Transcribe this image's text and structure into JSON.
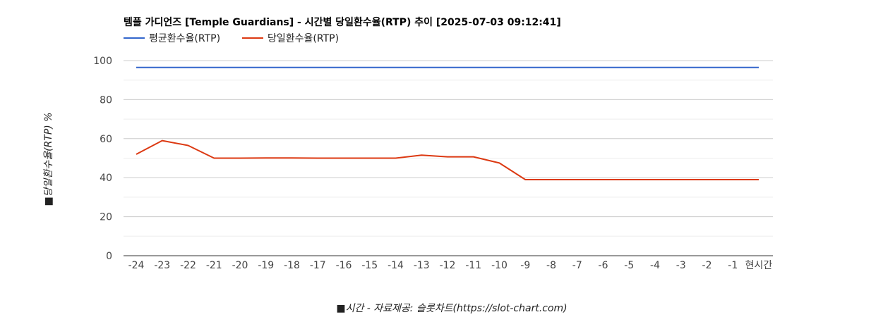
{
  "chart_data": {
    "type": "line",
    "title": "템플 가디언즈 [Temple Guardians] - 시간별 당일환수율(RTP) 추이 [2025-07-03 09:12:41]",
    "xlabel": "■시간 - 자료제공: 슬롯차트(https://slot-chart.com)",
    "ylabel": "■당일환수율(RTP) %",
    "ylim": [
      0,
      100
    ],
    "yticks": [
      0,
      20,
      40,
      60,
      80,
      100
    ],
    "grid": true,
    "legend_position": "top-left",
    "categories": [
      "-24",
      "-23",
      "-22",
      "-21",
      "-20",
      "-19",
      "-18",
      "-17",
      "-16",
      "-15",
      "-14",
      "-13",
      "-12",
      "-11",
      "-10",
      "-9",
      "-8",
      "-7",
      "-6",
      "-5",
      "-4",
      "-3",
      "-2",
      "-1",
      "현시간"
    ],
    "series": [
      {
        "name": "평균환수율(RTP)",
        "color": "#3366cc",
        "values": [
          96.5,
          96.5,
          96.5,
          96.5,
          96.5,
          96.5,
          96.5,
          96.5,
          96.5,
          96.5,
          96.5,
          96.5,
          96.5,
          96.5,
          96.5,
          96.5,
          96.5,
          96.5,
          96.5,
          96.5,
          96.5,
          96.5,
          96.5,
          96.5,
          96.5
        ]
      },
      {
        "name": "당일환수율(RTP)",
        "color": "#dc3912",
        "values": [
          52,
          59,
          56.5,
          50,
          50,
          50.1,
          50.1,
          50,
          50,
          50,
          50,
          51.5,
          50.7,
          50.7,
          47.5,
          39,
          39,
          39,
          39,
          39,
          39,
          39,
          39,
          39,
          39
        ]
      }
    ]
  }
}
